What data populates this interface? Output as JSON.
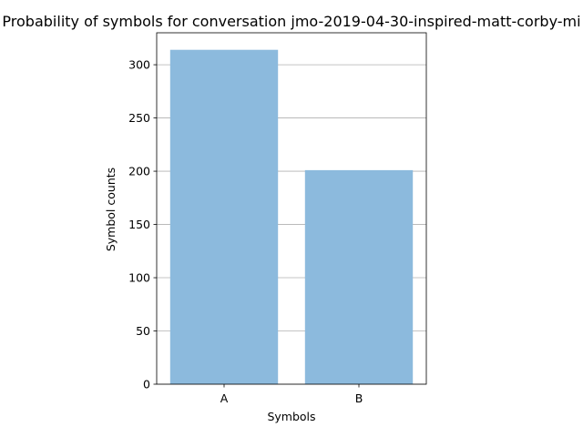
{
  "chart_data": {
    "type": "bar",
    "title": "Probability of symbols for conversation jmo-2019-04-30-inspired-matt-corby-mi",
    "xlabel": "Symbols",
    "ylabel": "Symbol counts",
    "categories": [
      "A",
      "B"
    ],
    "values": [
      314,
      201
    ],
    "ylim": [
      0,
      330
    ],
    "yticks": [
      0,
      50,
      100,
      150,
      200,
      250,
      300
    ],
    "grid": "y",
    "bar_color": "#8cbadd"
  }
}
